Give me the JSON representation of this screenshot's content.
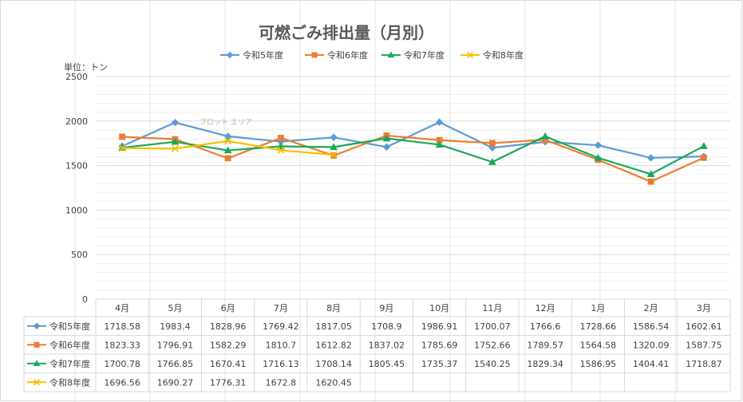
{
  "chart_data": {
    "type": "line",
    "title": "可燃ごみ排出量（月別）",
    "unit_label": "単位：トン",
    "plot_area_tag": "プロット エリア",
    "categories": [
      "4月",
      "5月",
      "6月",
      "7月",
      "8月",
      "9月",
      "10月",
      "11月",
      "12月",
      "1月",
      "2月",
      "3月"
    ],
    "ylim": [
      0,
      2500
    ],
    "yticks": [
      0,
      500,
      1000,
      1500,
      2000,
      2500
    ],
    "grid": true,
    "legend_position": "top",
    "data_table": true,
    "series": [
      {
        "name": "令和5年度",
        "color": "#5b9bd5",
        "marker": "diamond",
        "values": [
          "1718.58",
          "1983.4",
          "1828.96",
          "1769.42",
          "1817.05",
          "1708.9",
          "1986.91",
          "1700.07",
          "1766.6",
          "1728.66",
          "1586.54",
          "1602.61"
        ]
      },
      {
        "name": "令和6年度",
        "color": "#ed7d31",
        "marker": "square",
        "values": [
          "1823.33",
          "1796.91",
          "1582.29",
          "1810.7",
          "1612.82",
          "1837.02",
          "1785.69",
          "1752.66",
          "1789.57",
          "1564.58",
          "1320.09",
          "1587.75"
        ]
      },
      {
        "name": "令和7年度",
        "color": "#1aa85a",
        "marker": "triangle",
        "values": [
          "1700.78",
          "1766.85",
          "1670.41",
          "1716.13",
          "1708.14",
          "1805.45",
          "1735.37",
          "1540.25",
          "1829.34",
          "1586.95",
          "1404.41",
          "1718.87"
        ]
      },
      {
        "name": "令和8年度",
        "color": "#f5c000",
        "marker": "x",
        "values": [
          "1696.56",
          "1690.27",
          "1776.31",
          "1672.8",
          "1620.45",
          "",
          "",
          "",
          "",
          "",
          "",
          ""
        ]
      }
    ]
  }
}
